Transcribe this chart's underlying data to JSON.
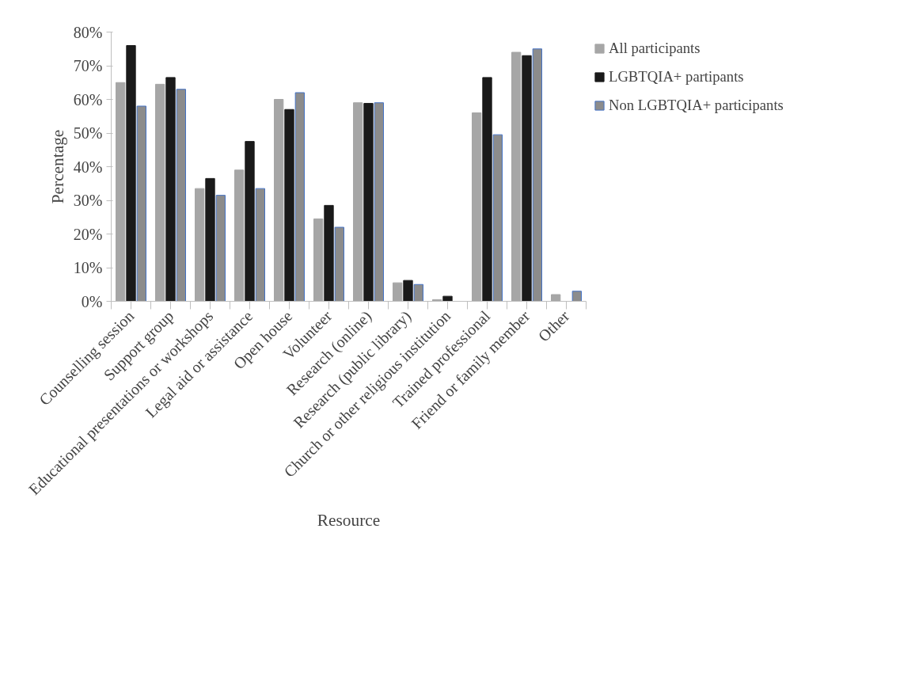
{
  "chart_data": {
    "type": "bar",
    "xlabel": "Resource",
    "ylabel": "Percentage",
    "categories": [
      "Counselling session",
      "Support group",
      "Educational presentations or workshops",
      "Legal aid or assistance",
      "Open house",
      "Volunteer",
      "Research (online)",
      "Research (public library)",
      "Church or other religious institution",
      "Trained professional",
      "Friend or family member",
      "Other"
    ],
    "series": [
      {
        "name": "All participants",
        "color": "#a6a6a6",
        "values": [
          65,
          64.5,
          33.5,
          39,
          60,
          24.5,
          59,
          5.5,
          0.5,
          56,
          74,
          2
        ]
      },
      {
        "name": "LGBTQIA+ partipants",
        "color": "#1a1a1a",
        "values": [
          76,
          66.5,
          36.5,
          47.5,
          57,
          28.5,
          58.8,
          6.2,
          1.5,
          66.5,
          73,
          0
        ]
      },
      {
        "name": "Non LGBTQIA+ participants",
        "color": "#8c8c8c",
        "values": [
          58,
          63,
          31.5,
          33.5,
          62,
          22,
          59,
          5,
          null,
          49.5,
          75,
          3
        ]
      }
    ],
    "ylim": [
      0,
      80
    ],
    "yticks": [
      {
        "value": 0,
        "label": "0%"
      },
      {
        "value": 10,
        "label": "10%"
      },
      {
        "value": 20,
        "label": "20%"
      },
      {
        "value": 30,
        "label": "30%"
      },
      {
        "value": 40,
        "label": "40%"
      },
      {
        "value": 50,
        "label": "50%"
      },
      {
        "value": 60,
        "label": "60%"
      },
      {
        "value": 70,
        "label": "70%"
      },
      {
        "value": 80,
        "label": "80%"
      }
    ],
    "grid": false,
    "legend": "top right"
  }
}
